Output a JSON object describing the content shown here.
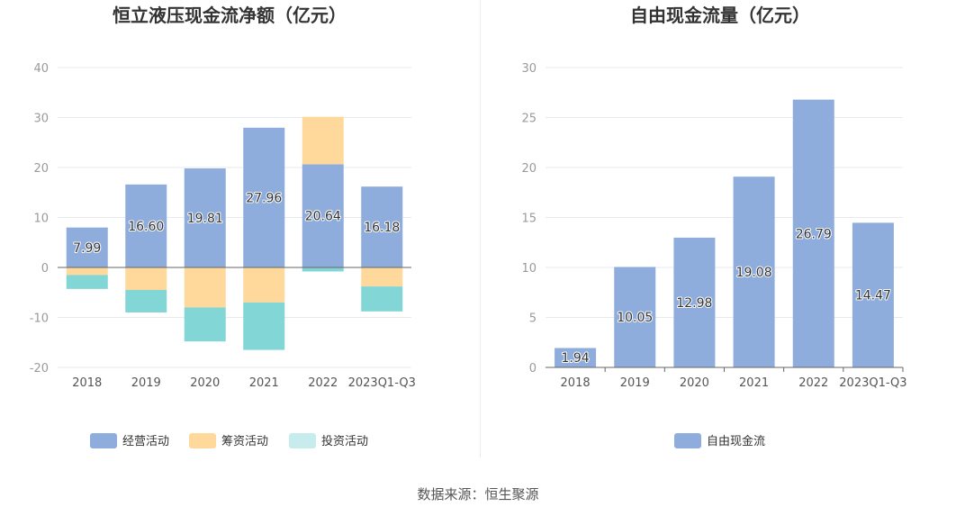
{
  "colors": {
    "operating": "#8eaddc",
    "financing": "#fed99b",
    "investing": "#82d6d6",
    "free_cash_flow": "#8eaddc",
    "legend_investing": "#c6ecee",
    "gridline": "#e6e9f0",
    "axis": "#666666"
  },
  "chart_data": [
    {
      "type": "bar",
      "stacked": true,
      "title": "恒立液压现金流净额（亿元）",
      "categories": [
        "2018",
        "2019",
        "2020",
        "2021",
        "2022",
        "2023Q1-Q3"
      ],
      "series": [
        {
          "name": "经营活动",
          "values": [
            7.99,
            16.6,
            19.81,
            27.96,
            20.64,
            16.18
          ],
          "labels": [
            "7.99",
            "16.60",
            "19.81",
            "27.96",
            "20.64",
            "16.18"
          ]
        },
        {
          "name": "筹资活动",
          "values": [
            -1.5,
            -4.5,
            -8.0,
            -7.0,
            9.5,
            -3.8
          ]
        },
        {
          "name": "投资活动",
          "values": [
            -2.8,
            -4.5,
            -6.8,
            -9.5,
            -0.8,
            -5.0
          ]
        }
      ],
      "ylim": [
        -20,
        40
      ],
      "yticks": [
        "-20",
        "-10",
        "0",
        "10",
        "20",
        "30",
        "40"
      ],
      "grid": true,
      "legend_position": "bottom"
    },
    {
      "type": "bar",
      "title": "自由现金流量（亿元）",
      "categories": [
        "2018",
        "2019",
        "2020",
        "2021",
        "2022",
        "2023Q1-Q3"
      ],
      "series": [
        {
          "name": "自由现金流",
          "values": [
            1.94,
            10.05,
            12.98,
            19.08,
            26.79,
            14.47
          ],
          "labels": [
            "1.94",
            "10.05",
            "12.98",
            "19.08",
            "26.79",
            "14.47"
          ]
        }
      ],
      "ylim": [
        0,
        30
      ],
      "yticks": [
        "0",
        "5",
        "10",
        "15",
        "20",
        "25",
        "30"
      ],
      "grid": true,
      "legend_position": "bottom"
    }
  ],
  "footer": {
    "source_label": "数据来源：",
    "source_name": "恒生聚源"
  }
}
